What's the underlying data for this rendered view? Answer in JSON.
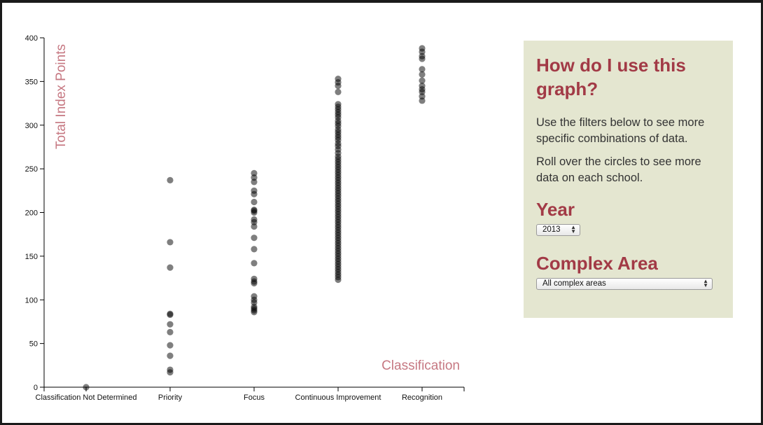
{
  "chart_data": {
    "type": "scatter",
    "xlabel": "Classification",
    "ylabel": "Total Index Points",
    "categories": [
      "Classification Not Determined",
      "Priority",
      "Focus",
      "Continuous Improvement",
      "Recognition"
    ],
    "ylim": [
      0,
      400
    ],
    "yticks": [
      0,
      50,
      100,
      150,
      200,
      250,
      300,
      350,
      400
    ],
    "grid": false,
    "points": [
      {
        "category": "Classification Not Determined",
        "values": [
          0
        ]
      },
      {
        "category": "Priority",
        "values": [
          237,
          166,
          137,
          84,
          83,
          72,
          63,
          48,
          36,
          20,
          17
        ]
      },
      {
        "category": "Focus",
        "values": [
          245,
          240,
          235,
          225,
          221,
          212,
          203,
          202,
          200,
          192,
          189,
          184,
          171,
          158,
          142,
          124,
          121,
          119,
          104,
          100,
          97,
          92,
          90,
          88,
          86
        ]
      },
      {
        "category": "Continuous Improvement",
        "values": [
          353,
          349,
          345,
          338,
          324,
          321,
          318,
          315,
          312,
          309,
          305,
          302,
          299,
          295,
          292,
          289,
          286,
          283,
          279,
          276,
          272,
          268,
          264,
          261,
          258,
          255,
          252,
          249,
          246,
          243,
          240,
          237,
          234,
          231,
          228,
          225,
          222,
          219,
          216,
          213,
          210,
          207,
          204,
          201,
          198,
          195,
          192,
          189,
          186,
          183,
          180,
          177,
          174,
          171,
          168,
          165,
          162,
          159,
          156,
          153,
          150,
          147,
          144,
          141,
          138,
          135,
          132,
          129,
          126,
          123
        ]
      },
      {
        "category": "Recognition",
        "values": [
          388,
          384,
          379,
          376,
          364,
          358,
          351,
          345,
          341,
          338,
          333,
          328
        ]
      }
    ]
  },
  "panel": {
    "title": "How do I use this graph?",
    "p1": "Use the filters below to see more specific combinations of data.",
    "p2": "Roll over the circles to see more data on each school.",
    "year_label": "Year",
    "year_value": "2013",
    "area_label": "Complex Area",
    "area_value": "All complex areas"
  }
}
